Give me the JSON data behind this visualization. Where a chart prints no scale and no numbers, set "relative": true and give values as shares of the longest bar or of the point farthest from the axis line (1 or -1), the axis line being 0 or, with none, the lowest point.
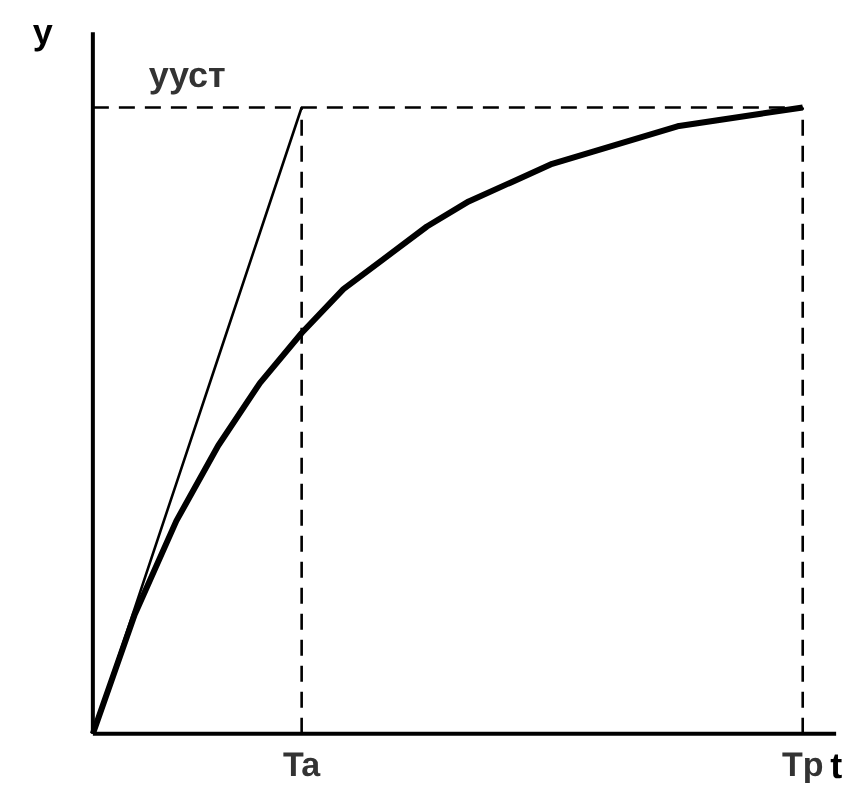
{
  "chart_data": {
    "type": "line",
    "relative": true,
    "xlabel": "t",
    "ylabel": "y",
    "categories": [
      null,
      null,
      null,
      null,
      null,
      "Ta",
      null,
      null,
      null,
      null,
      null,
      null,
      null,
      null,
      null,
      null,
      null,
      "Tp"
    ],
    "series": [
      {
        "color": "#000000",
        "values": [
          0,
          0.19,
          0.34,
          0.46,
          0.56,
          0.64,
          0.71,
          0.76,
          0.81,
          0.85,
          0.88,
          0.91,
          0.93,
          0.95,
          0.97,
          0.98,
          0.99,
          1.0
        ]
      },
      {
        "color": "#000000",
        "values": [
          0,
          0.2,
          0.4,
          0.6,
          0.8,
          1.0,
          null,
          null,
          null,
          null,
          null,
          null,
          null,
          null,
          null,
          null,
          null,
          null
        ]
      },
      {
        "name": "yуст",
        "color": "#000000",
        "line_style": "dashed",
        "values": [
          1,
          1,
          1,
          1,
          1,
          1,
          1,
          1,
          1,
          1,
          1,
          1,
          1,
          1,
          1,
          1,
          1,
          1
        ]
      }
    ],
    "ref_lines": [
      {
        "axis": "x",
        "value": "Ta",
        "line_style": "dashed",
        "color": "#000000"
      },
      {
        "axis": "x",
        "value": "Tp",
        "line_style": "dashed",
        "color": "#000000"
      }
    ],
    "grid": false,
    "legend": false
  }
}
